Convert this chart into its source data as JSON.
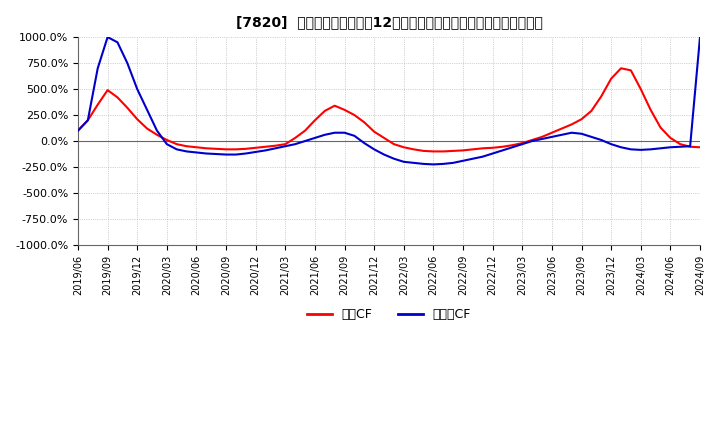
{
  "title": "[7820]  キャッシュフローの12か月移動合計の対前年同期増減率の推移",
  "legend_labels": [
    "営業CF",
    "フリーCF"
  ],
  "legend_colors": [
    "#ff0000",
    "#0000cc"
  ],
  "ylim": [
    -1000,
    1000
  ],
  "yticks": [
    -1000,
    -750,
    -500,
    -250,
    0,
    250,
    500,
    750,
    1000
  ],
  "ytick_labels": [
    "-1000.0%",
    "-750.0%",
    "-500.0%",
    "-250.0%",
    "0.0%",
    "250.0%",
    "500.0%",
    "750.0%",
    "1000.0%"
  ],
  "bg_color": "#ffffff",
  "plot_bg_color": "#ffffff",
  "values_operating": [
    100,
    200,
    350,
    490,
    420,
    320,
    210,
    120,
    60,
    10,
    -30,
    -50,
    -60,
    -70,
    -75,
    -80,
    -80,
    -75,
    -65,
    -55,
    -45,
    -30,
    30,
    100,
    200,
    290,
    340,
    300,
    250,
    180,
    90,
    30,
    -30,
    -60,
    -80,
    -95,
    -100,
    -100,
    -95,
    -90,
    -80,
    -70,
    -65,
    -55,
    -40,
    -20,
    10,
    40,
    80,
    120,
    160,
    210,
    290,
    430,
    600,
    700,
    680,
    500,
    300,
    130,
    30,
    -30,
    -55,
    -60
  ],
  "values_free": [
    100,
    200,
    700,
    1000,
    950,
    750,
    500,
    300,
    100,
    -30,
    -80,
    -100,
    -110,
    -120,
    -125,
    -130,
    -130,
    -120,
    -105,
    -90,
    -70,
    -50,
    -30,
    0,
    30,
    60,
    80,
    80,
    50,
    -20,
    -80,
    -130,
    -170,
    -200,
    -210,
    -220,
    -225,
    -220,
    -210,
    -190,
    -170,
    -150,
    -120,
    -90,
    -60,
    -30,
    0,
    20,
    40,
    60,
    80,
    70,
    40,
    10,
    -30,
    -60,
    -80,
    -85,
    -80,
    -70,
    -60,
    -55,
    -50,
    1000
  ],
  "xtick_positions": [
    0,
    3,
    6,
    9,
    12,
    15,
    18,
    21,
    24,
    27,
    30,
    33,
    36,
    39,
    42,
    45,
    48,
    51,
    54,
    57,
    60,
    63
  ],
  "xtick_labels": [
    "2019/06",
    "2019/09",
    "2019/12",
    "2020/03",
    "2020/06",
    "2020/09",
    "2020/12",
    "2021/03",
    "2021/06",
    "2021/09",
    "2021/12",
    "2022/03",
    "2022/06",
    "2022/09",
    "2022/12",
    "2023/03",
    "2023/06",
    "2023/09",
    "2023/12",
    "2024/03",
    "2024/06",
    "2024/09"
  ],
  "n_points": 64
}
